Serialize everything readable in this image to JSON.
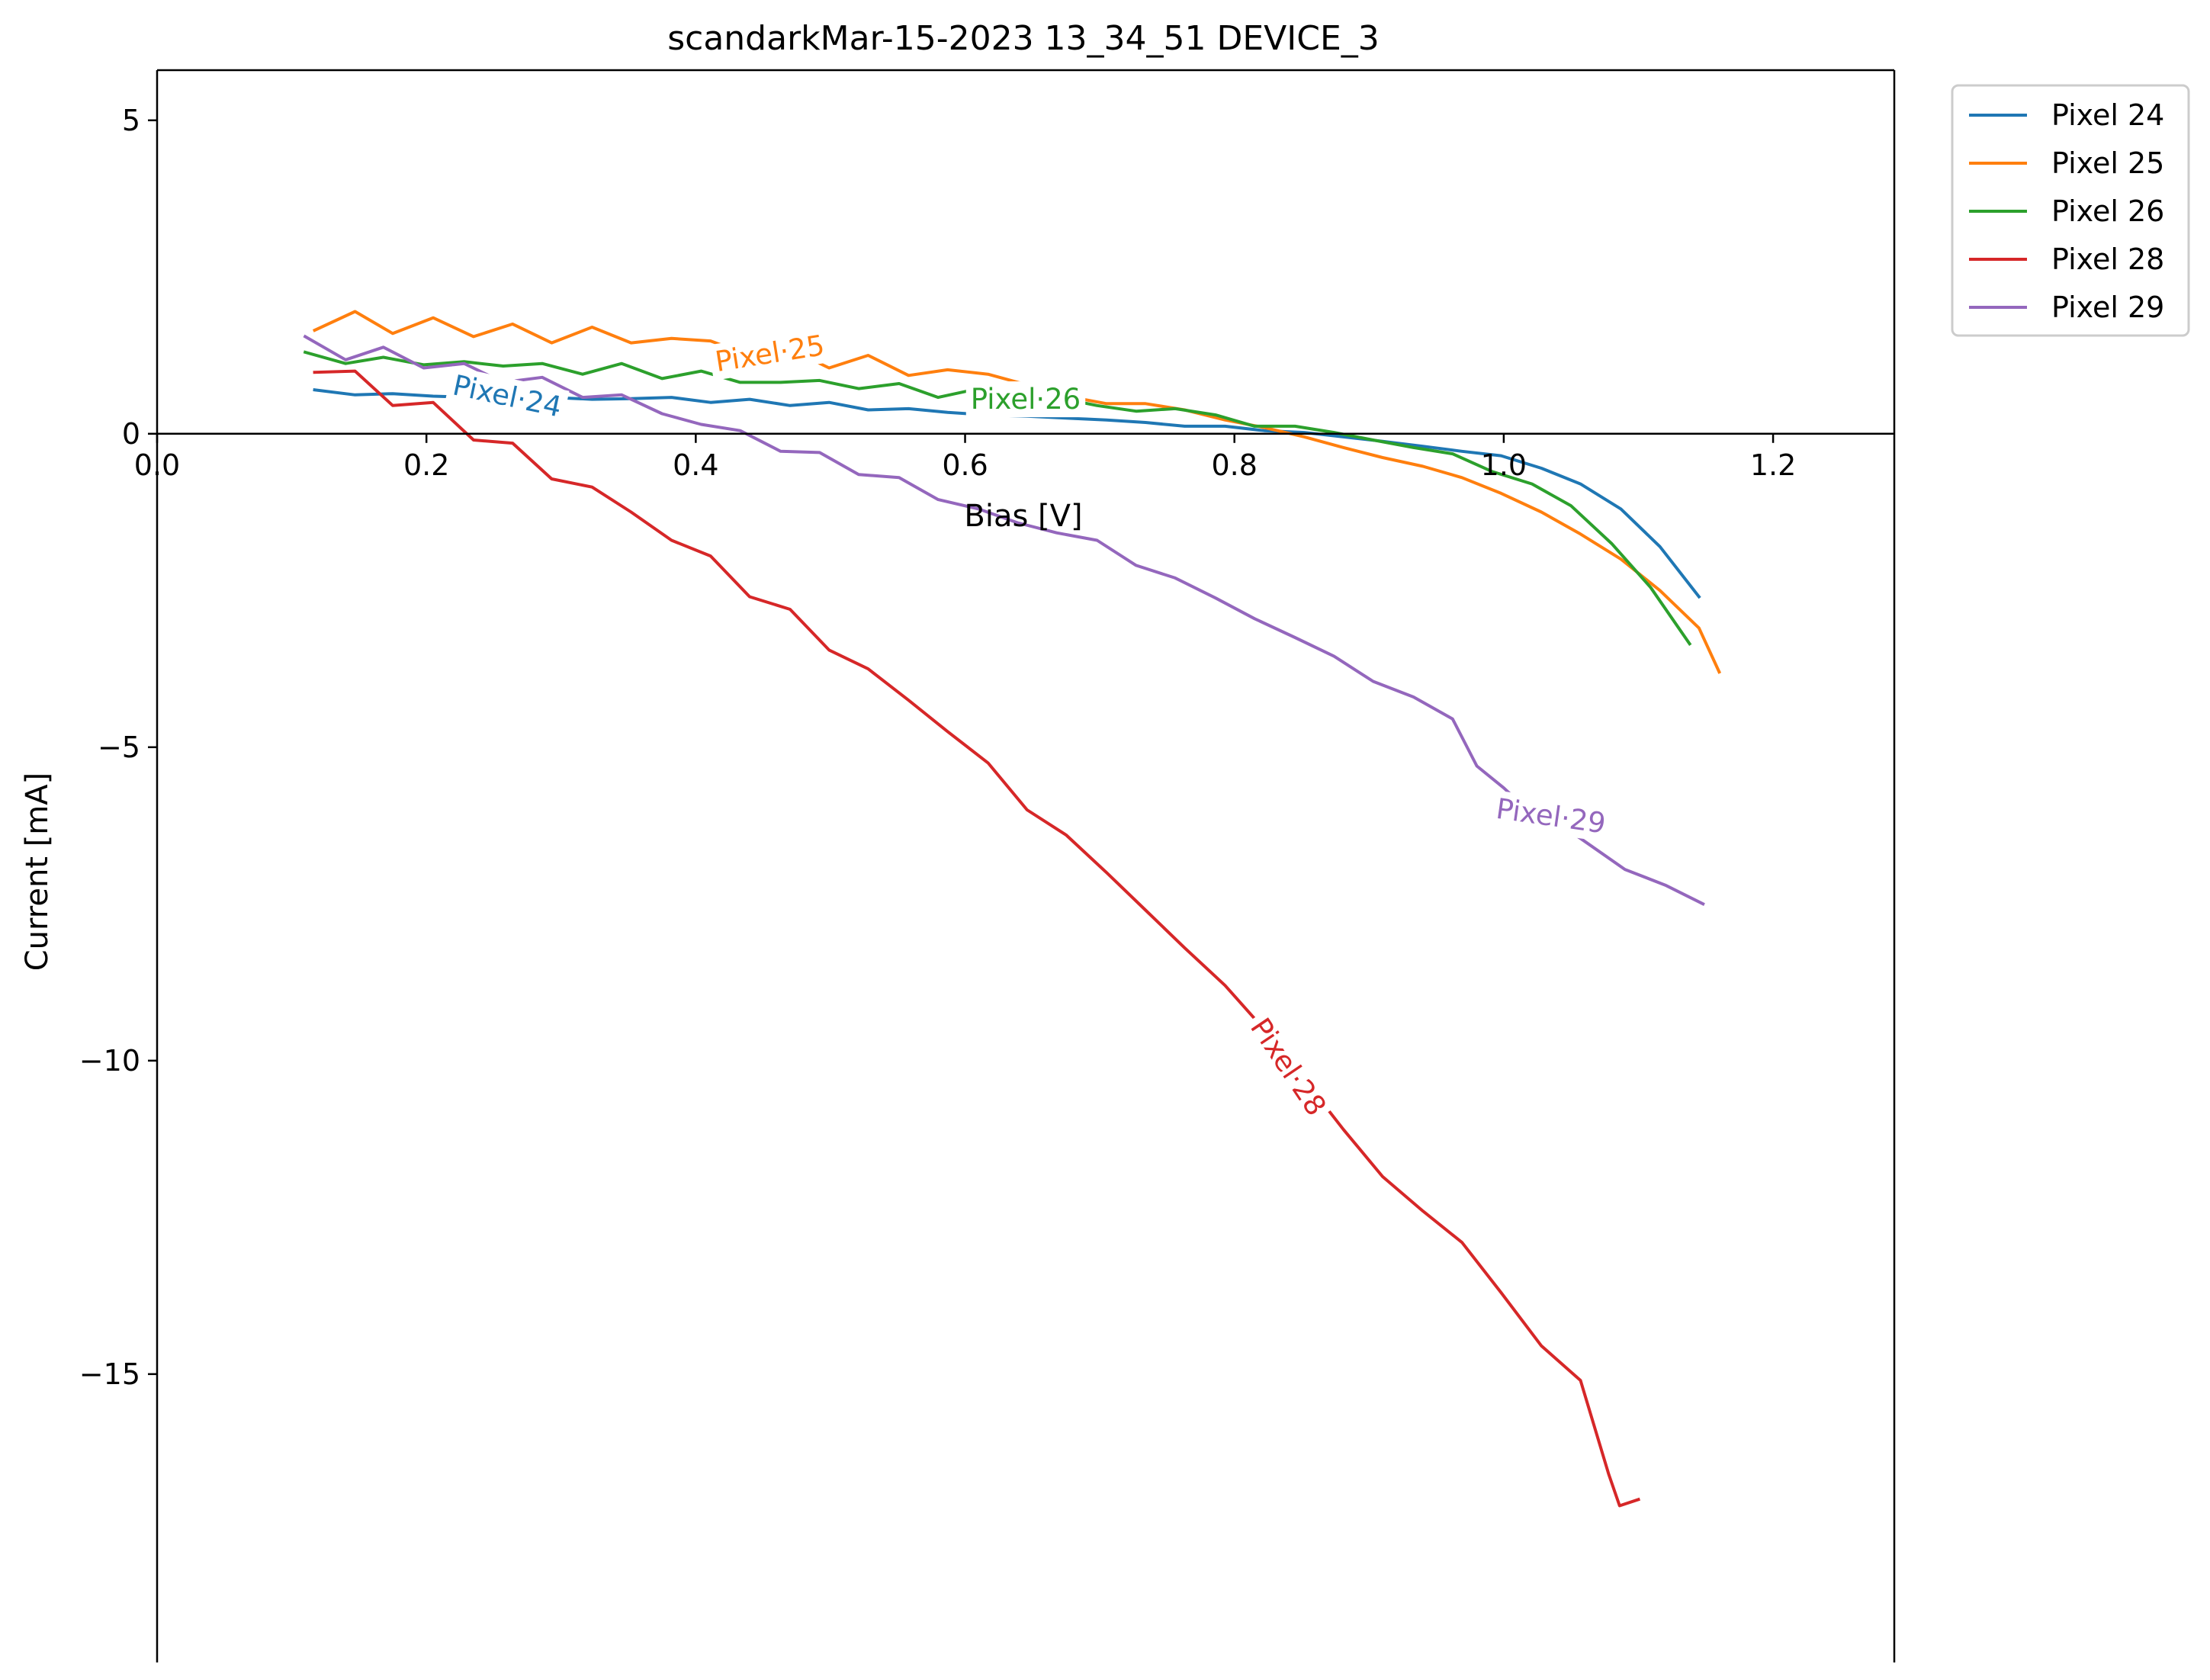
{
  "chart_data": {
    "type": "line",
    "title": "scandarkMar-15-2023 13_34_51 DEVICE_3",
    "xlabel": "Bias [V]",
    "ylabel": "Current [mA]",
    "xlim": [
      0.0,
      1.29
    ],
    "ylim": [
      -19.6,
      5.8
    ],
    "xticks": [
      0.0,
      0.2,
      0.4,
      0.6,
      0.8,
      1.0,
      1.2
    ],
    "xtick_labels": [
      "0.0",
      "0.2",
      "0.4",
      "0.6",
      "0.8",
      "1.0",
      "1.2"
    ],
    "yticks": [
      5,
      0,
      -5,
      -10,
      -15
    ],
    "ytick_labels": [
      "5",
      "0",
      "−5",
      "−10",
      "−15"
    ],
    "grid": false,
    "legend_position": "outside top-right",
    "series": [
      {
        "name": "Pixel 24",
        "color": "#1f77b4",
        "inline_label": "Pixel·24",
        "label_at": [
          0.26,
          0.6
        ],
        "label_angle": 12,
        "x": [
          0.117,
          0.147,
          0.175,
          0.205,
          0.235,
          0.264,
          0.293,
          0.323,
          0.352,
          0.382,
          0.411,
          0.44,
          0.47,
          0.499,
          0.528,
          0.558,
          0.587,
          0.617,
          0.646,
          0.675,
          0.705,
          0.734,
          0.763,
          0.793,
          0.822,
          0.852,
          0.881,
          0.91,
          0.94,
          0.969,
          0.998,
          1.028,
          1.057,
          1.087,
          1.116,
          1.145
        ],
        "y": [
          0.7,
          0.62,
          0.64,
          0.6,
          0.58,
          0.62,
          0.58,
          0.55,
          0.56,
          0.58,
          0.5,
          0.55,
          0.45,
          0.5,
          0.38,
          0.4,
          0.34,
          0.3,
          0.28,
          0.25,
          0.22,
          0.18,
          0.12,
          0.12,
          0.05,
          0.02,
          -0.05,
          -0.12,
          -0.2,
          -0.28,
          -0.35,
          -0.55,
          -0.8,
          -1.2,
          -1.8,
          -2.6
        ]
      },
      {
        "name": "Pixel 25",
        "color": "#ff7f0e",
        "inline_label": "Pixel·25",
        "label_at": [
          0.455,
          1.28
        ],
        "label_angle": -9,
        "x": [
          0.117,
          0.147,
          0.175,
          0.205,
          0.235,
          0.264,
          0.293,
          0.323,
          0.352,
          0.382,
          0.411,
          0.44,
          0.47,
          0.499,
          0.528,
          0.558,
          0.587,
          0.617,
          0.646,
          0.675,
          0.705,
          0.734,
          0.763,
          0.793,
          0.822,
          0.852,
          0.881,
          0.91,
          0.94,
          0.969,
          0.998,
          1.028,
          1.057,
          1.087,
          1.116,
          1.145,
          1.16
        ],
        "y": [
          1.65,
          1.95,
          1.6,
          1.85,
          1.55,
          1.75,
          1.45,
          1.7,
          1.45,
          1.52,
          1.48,
          1.25,
          1.35,
          1.05,
          1.25,
          0.93,
          1.02,
          0.95,
          0.78,
          0.6,
          0.48,
          0.48,
          0.38,
          0.22,
          0.1,
          -0.05,
          -0.22,
          -0.38,
          -0.52,
          -0.7,
          -0.95,
          -1.25,
          -1.6,
          -2.0,
          -2.5,
          -3.1,
          -3.8
        ]
      },
      {
        "name": "Pixel 26",
        "color": "#2ca02c",
        "inline_label": "Pixel·26",
        "label_at": [
          0.645,
          0.55
        ],
        "label_angle": 0,
        "x": [
          0.11,
          0.14,
          0.168,
          0.198,
          0.228,
          0.257,
          0.286,
          0.316,
          0.345,
          0.375,
          0.404,
          0.433,
          0.463,
          0.492,
          0.521,
          0.551,
          0.58,
          0.61,
          0.639,
          0.668,
          0.698,
          0.727,
          0.756,
          0.786,
          0.815,
          0.845,
          0.874,
          0.903,
          0.933,
          0.962,
          0.991,
          1.021,
          1.05,
          1.08,
          1.109,
          1.138
        ],
        "y": [
          1.3,
          1.12,
          1.22,
          1.1,
          1.15,
          1.08,
          1.12,
          0.95,
          1.12,
          0.88,
          1.0,
          0.82,
          0.82,
          0.85,
          0.72,
          0.8,
          0.58,
          0.72,
          0.62,
          0.58,
          0.45,
          0.36,
          0.4,
          0.3,
          0.12,
          0.12,
          0.02,
          -0.1,
          -0.22,
          -0.32,
          -0.6,
          -0.8,
          -1.15,
          -1.75,
          -2.45,
          -3.35
        ]
      },
      {
        "name": "Pixel 28",
        "color": "#d62728",
        "inline_label": "Pixel·28",
        "label_at": [
          0.84,
          -10.1
        ],
        "label_angle": 56,
        "x": [
          0.117,
          0.147,
          0.175,
          0.205,
          0.235,
          0.264,
          0.293,
          0.323,
          0.352,
          0.382,
          0.411,
          0.44,
          0.47,
          0.499,
          0.528,
          0.558,
          0.587,
          0.617,
          0.646,
          0.675,
          0.705,
          0.734,
          0.763,
          0.793,
          0.822,
          0.852,
          0.881,
          0.91,
          0.94,
          0.969,
          0.998,
          1.028,
          1.057,
          1.078,
          1.086,
          1.1
        ],
        "y": [
          0.98,
          1.0,
          0.45,
          0.5,
          -0.1,
          -0.15,
          -0.72,
          -0.85,
          -1.25,
          -1.7,
          -1.95,
          -2.6,
          -2.8,
          -3.45,
          -3.75,
          -4.25,
          -4.75,
          -5.25,
          -6.0,
          -6.4,
          -7.0,
          -7.6,
          -8.2,
          -8.8,
          -9.5,
          -10.3,
          -11.1,
          -11.85,
          -12.4,
          -12.9,
          -13.7,
          -14.55,
          -15.1,
          -16.6,
          -17.1,
          -17.0
        ]
      },
      {
        "name": "Pixel 29",
        "color": "#9467bd",
        "inline_label": "Pixel·29",
        "label_at": [
          1.035,
          -6.1
        ],
        "label_angle": 8,
        "x": [
          0.11,
          0.14,
          0.168,
          0.198,
          0.228,
          0.257,
          0.286,
          0.316,
          0.345,
          0.375,
          0.404,
          0.433,
          0.463,
          0.492,
          0.521,
          0.551,
          0.58,
          0.61,
          0.639,
          0.668,
          0.698,
          0.727,
          0.756,
          0.786,
          0.815,
          0.845,
          0.874,
          0.903,
          0.933,
          0.962,
          0.98,
          1.0,
          1.02,
          1.05,
          1.09,
          1.12,
          1.148
        ],
        "y": [
          1.55,
          1.18,
          1.38,
          1.05,
          1.12,
          0.82,
          0.9,
          0.58,
          0.62,
          0.32,
          0.15,
          0.05,
          -0.28,
          -0.3,
          -0.65,
          -0.7,
          -1.05,
          -1.2,
          -1.42,
          -1.58,
          -1.7,
          -2.1,
          -2.3,
          -2.62,
          -2.95,
          -3.25,
          -3.55,
          -3.95,
          -4.2,
          -4.55,
          -5.3,
          -5.65,
          -6.05,
          -6.35,
          -6.95,
          -7.2,
          -7.5
        ]
      }
    ]
  }
}
